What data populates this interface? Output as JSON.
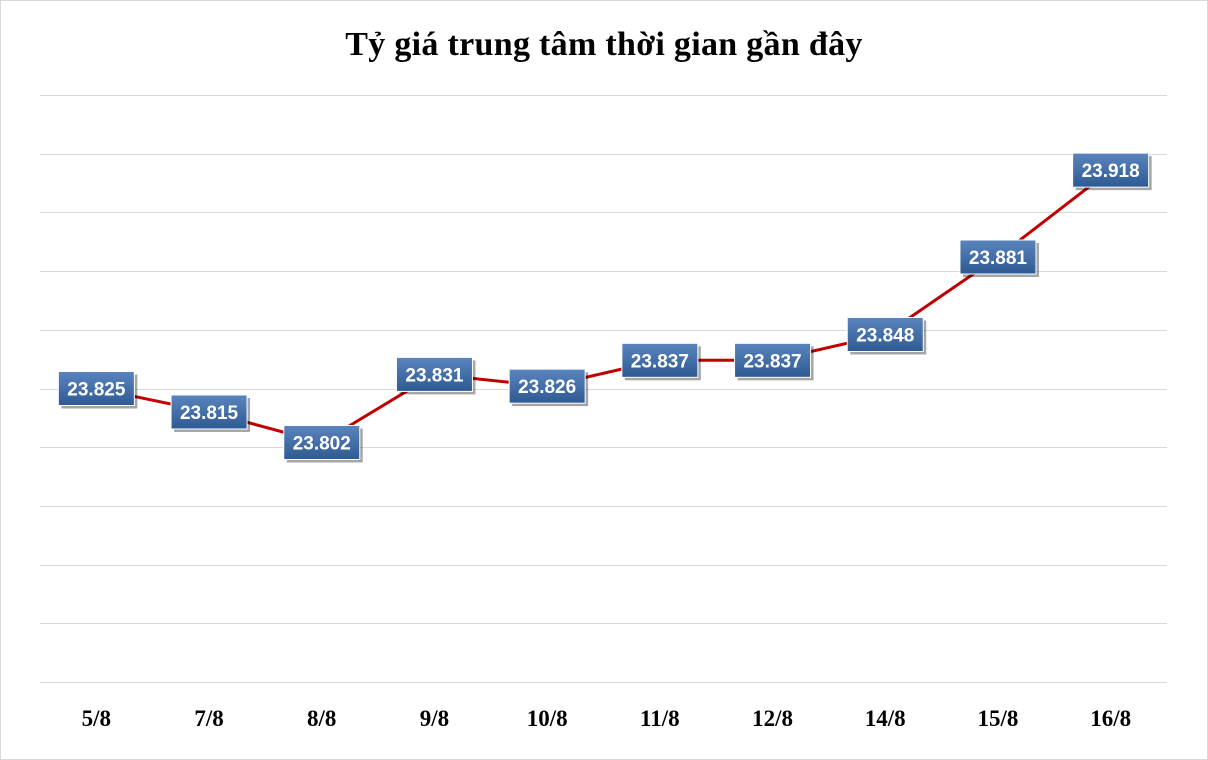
{
  "chart_data": {
    "type": "line",
    "title": "Tỷ giá trung tâm thời gian gần đây",
    "categories": [
      "5/8",
      "7/8",
      "8/8",
      "9/8",
      "10/8",
      "11/8",
      "12/8",
      "14/8",
      "15/8",
      "16/8"
    ],
    "values": [
      23825,
      23815,
      23802,
      23831,
      23826,
      23837,
      23837,
      23848,
      23881,
      23918
    ],
    "data_labels": [
      "23.825",
      "23.815",
      "23.802",
      "23.831",
      "23.826",
      "23.837",
      "23.837",
      "23.848",
      "23.881",
      "23.918"
    ],
    "xlabel": "",
    "ylabel": "",
    "grid": true,
    "legend": "none",
    "colors": {
      "line": "#c00000",
      "label_fill_top": "#5a84bd",
      "label_fill_bottom": "#2e5a94",
      "gridline": "#d9d9d9"
    }
  }
}
